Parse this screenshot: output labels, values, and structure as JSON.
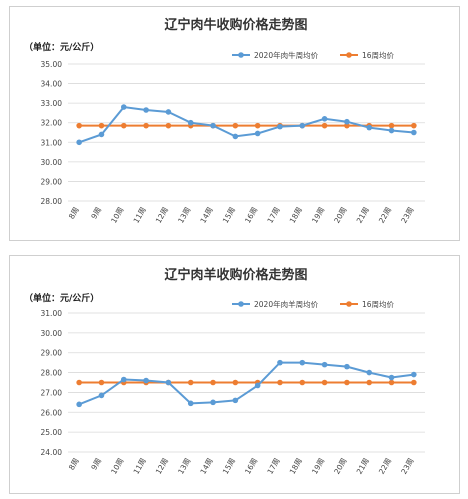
{
  "chart_data": [
    {
      "type": "line",
      "title": "辽宁肉牛收购价格走势图",
      "unit_label": "（单位：元/公斤）",
      "categories": [
        "8周",
        "9周",
        "10周",
        "11周",
        "12周",
        "13周",
        "14周",
        "15周",
        "16周",
        "17周",
        "18周",
        "19周",
        "20周",
        "21周",
        "22周",
        "23周"
      ],
      "ylim": [
        28.0,
        35.0
      ],
      "yticks": [
        "28.00",
        "29.00",
        "30.00",
        "31.00",
        "32.00",
        "33.00",
        "34.00",
        "35.00"
      ],
      "grid": true,
      "legend_position": "top-right",
      "series": [
        {
          "name": "2020年肉牛周均价",
          "color": "#5b9bd5",
          "values": [
            31.0,
            31.4,
            32.8,
            32.65,
            32.55,
            32.0,
            31.85,
            31.3,
            31.45,
            31.8,
            31.85,
            32.2,
            32.05,
            31.75,
            31.6,
            31.5
          ]
        },
        {
          "name": "16周均价",
          "color": "#ed7d31",
          "values": [
            31.85,
            31.85,
            31.85,
            31.85,
            31.85,
            31.85,
            31.85,
            31.85,
            31.85,
            31.85,
            31.85,
            31.85,
            31.85,
            31.85,
            31.85,
            31.85
          ]
        }
      ]
    },
    {
      "type": "line",
      "title": "辽宁肉羊收购价格走势图",
      "unit_label": "（单位：元/公斤）",
      "categories": [
        "8周",
        "9周",
        "10周",
        "11周",
        "12周",
        "13周",
        "14周",
        "15周",
        "16周",
        "17周",
        "18周",
        "19周",
        "20周",
        "21周",
        "22周",
        "23周"
      ],
      "ylim": [
        24.0,
        31.0
      ],
      "yticks": [
        "24.00",
        "25.00",
        "26.00",
        "27.00",
        "28.00",
        "29.00",
        "30.00",
        "31.00"
      ],
      "grid": true,
      "legend_position": "top-right",
      "series": [
        {
          "name": "2020年肉羊周均价",
          "color": "#5b9bd5",
          "values": [
            26.4,
            26.85,
            27.65,
            27.6,
            27.5,
            26.45,
            26.5,
            26.6,
            27.35,
            28.5,
            28.5,
            28.4,
            28.3,
            28.0,
            27.75,
            27.9
          ]
        },
        {
          "name": "16周均价",
          "color": "#ed7d31",
          "values": [
            27.5,
            27.5,
            27.5,
            27.5,
            27.5,
            27.5,
            27.5,
            27.5,
            27.5,
            27.5,
            27.5,
            27.5,
            27.5,
            27.5,
            27.5,
            27.5
          ]
        }
      ]
    }
  ]
}
